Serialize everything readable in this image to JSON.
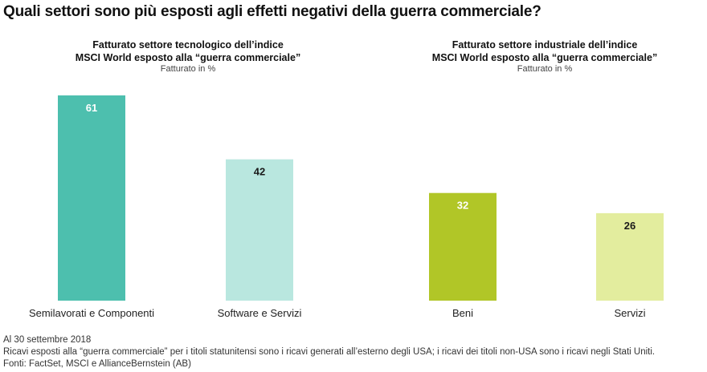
{
  "title": "Quali settori sono più esposti agli effetti negativi della guerra commerciale?",
  "colors": {
    "tech_semi": "#4dbfae",
    "tech_soft": "#b9e7df",
    "ind_goods": "#b1c627",
    "ind_serv": "#e3ed9e",
    "label_on_dark": "#ffffff",
    "label_on_light": "#1a1a1a"
  },
  "panels": [
    {
      "title_line1": "Fatturato settore tecnologico dell’indice",
      "title_line2": "MSCI World esposto alla “guerra commerciale”",
      "subtitle": "Fatturato in %"
    },
    {
      "title_line1": "Fatturato settore industriale dell’indice",
      "title_line2": "MSCI World esposto alla “guerra commerciale”",
      "subtitle": "Fatturato in %"
    }
  ],
  "chart_data": [
    {
      "type": "bar",
      "title": "Fatturato settore tecnologico dell’indice MSCI World esposto alla “guerra commerciale”",
      "ylabel": "Fatturato in %",
      "categories": [
        "Semilavorati e Componenti",
        "Software e Servizi"
      ],
      "values": [
        61,
        42
      ],
      "bar_colors": [
        "#4dbfae",
        "#b9e7df"
      ],
      "ylim": [
        0,
        61
      ],
      "grid": false
    },
    {
      "type": "bar",
      "title": "Fatturato settore industriale dell’indice MSCI World esposto alla “guerra commerciale”",
      "ylabel": "Fatturato in %",
      "categories": [
        "Beni",
        "Servizi"
      ],
      "values": [
        32,
        26
      ],
      "bar_colors": [
        "#b1c627",
        "#e3ed9e"
      ],
      "ylim": [
        0,
        61
      ],
      "grid": false
    }
  ],
  "footer": {
    "date": "Al 30 settembre 2018",
    "note": "Ricavi esposti alla “guerra commerciale” per i titoli statunitensi  sono i ricavi generati all’esterno degli USA; i ricavi dei titoli non-USA  sono i ricavi negli Stati Uniti.",
    "sources": "Fonti: FactSet, MSCI e AllianceBernstein (AB)"
  }
}
